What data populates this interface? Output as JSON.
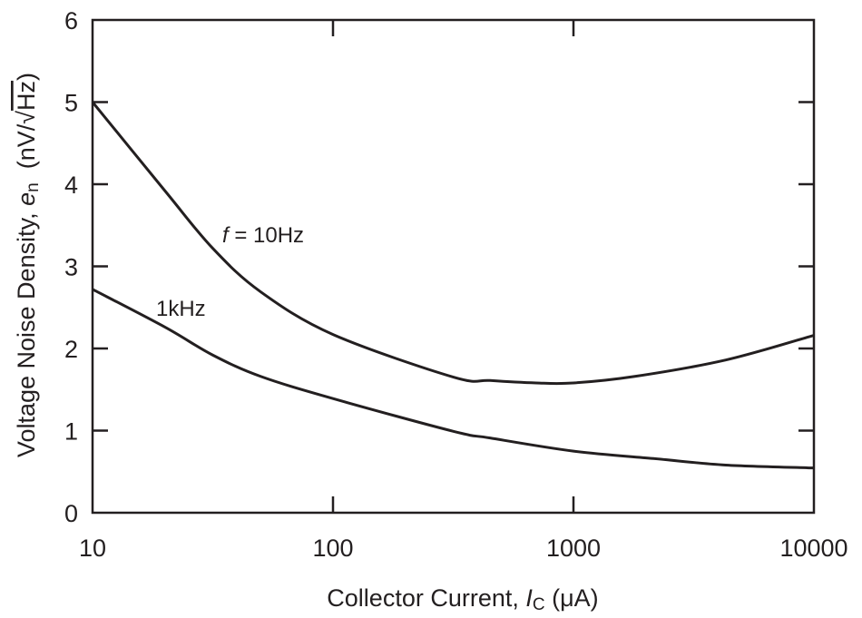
{
  "chart_data": {
    "type": "line",
    "title": "",
    "xlabel": {
      "text": "Collector Current, ",
      "symbol": "I",
      "subscript": "C",
      "unit": " (μA)"
    },
    "ylabel": {
      "text": "Voltage Noise Density, ",
      "symbol": "e",
      "subscript": "n",
      "unit_prefix": "  (nV/",
      "unit_radical": "√",
      "unit_radicand": "Hz",
      "unit_suffix": ")"
    },
    "x_scale": "log",
    "xlim": [
      10,
      10000
    ],
    "ylim": [
      0,
      6
    ],
    "grid": false,
    "x_ticks": [
      "10",
      "100",
      "1000",
      "10000"
    ],
    "y_ticks": [
      "0",
      "1",
      "2",
      "3",
      "4",
      "5",
      "6"
    ],
    "series": [
      {
        "name": "f = 10Hz",
        "label_italic": "f",
        "label_rest": " = 10Hz",
        "x": [
          10,
          20,
          31.6,
          50,
          100,
          318,
          450,
          700,
          1000,
          1800,
          4300,
          10000
        ],
        "y": [
          5.0,
          3.92,
          3.22,
          2.69,
          2.17,
          1.65,
          1.61,
          1.58,
          1.58,
          1.66,
          1.86,
          2.16
        ]
      },
      {
        "name": "1kHz",
        "label_rest": "1kHz",
        "x": [
          10,
          20,
          31.6,
          50,
          100,
          318,
          450,
          1000,
          2150,
          4300,
          10000
        ],
        "y": [
          2.72,
          2.26,
          1.92,
          1.66,
          1.39,
          0.99,
          0.91,
          0.75,
          0.66,
          0.58,
          0.545
        ]
      }
    ],
    "line_color": "#231f20"
  }
}
